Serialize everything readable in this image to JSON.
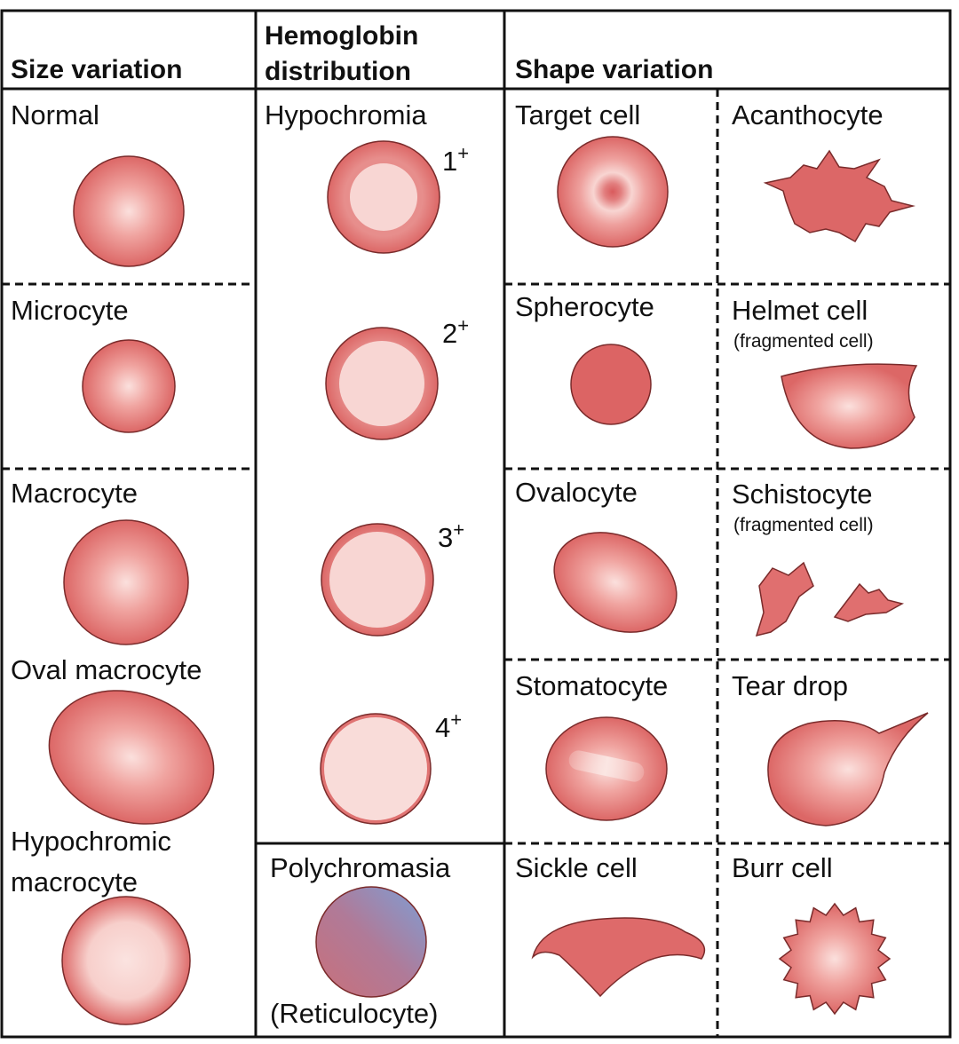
{
  "headers": {
    "size": "Size variation",
    "hemoglobin": [
      "Hemoglobin",
      "distribution"
    ],
    "shape": "Shape variation"
  },
  "size_variation": [
    {
      "label": "Normal"
    },
    {
      "label": "Microcyte"
    },
    {
      "label": "Macrocyte"
    },
    {
      "label": "Oval macrocyte"
    },
    {
      "label": [
        "Hypochromic",
        "macrocyte"
      ]
    }
  ],
  "hemoglobin_distribution": {
    "hypochromia": {
      "label": "Hypochromia",
      "grades": [
        {
          "number": "1",
          "sign": "+"
        },
        {
          "number": "2",
          "sign": "+"
        },
        {
          "number": "3",
          "sign": "+"
        },
        {
          "number": "4",
          "sign": "+"
        }
      ]
    },
    "polychromasia": {
      "label": "Polychromasia",
      "note": "(Reticulocyte)"
    }
  },
  "shape_variation": [
    {
      "name": "Target cell"
    },
    {
      "name": "Acanthocyte"
    },
    {
      "name": "Spherocyte"
    },
    {
      "name": "Helmet cell",
      "note": "(fragmented cell)"
    },
    {
      "name": "Ovalocyte"
    },
    {
      "name": "Schistocyte",
      "note": "(fragmented cell)"
    },
    {
      "name": "Stomatocyte"
    },
    {
      "name": "Tear drop"
    },
    {
      "name": "Sickle cell"
    },
    {
      "name": "Burr cell"
    }
  ]
}
